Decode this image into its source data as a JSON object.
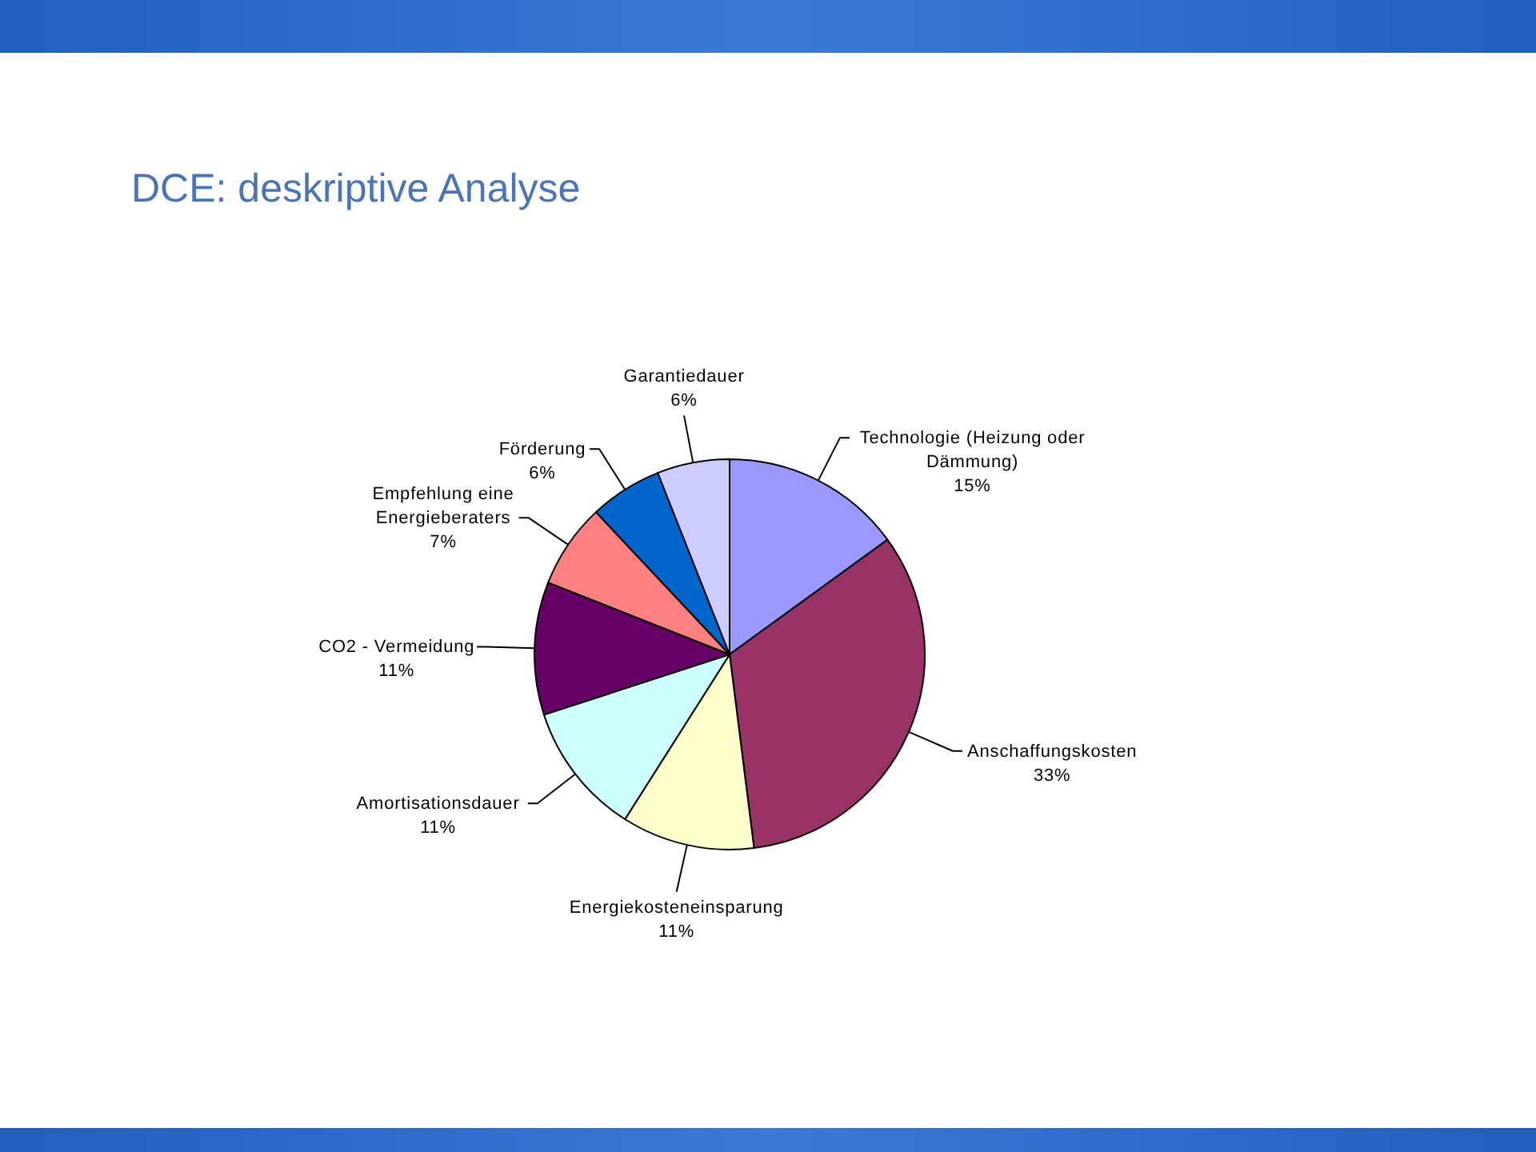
{
  "chart_data": {
    "type": "pie",
    "title": "DCE: deskriptive Analyse",
    "categories": [
      "Technologie (Heizung oder Dämmung)",
      "Anschaffungskosten",
      "Energiekosteneinsparung",
      "Amortisationsdauer",
      "CO2 - Vermeidung",
      "Empfehlung eine Energieberaters",
      "Förderung",
      "Garantiedauer"
    ],
    "values": [
      15,
      33,
      11,
      11,
      11,
      7,
      6,
      6
    ],
    "value_labels": [
      "15%",
      "33%",
      "11%",
      "11%",
      "11%",
      "7%",
      "6%",
      "6%"
    ],
    "colors": [
      "#9999ff",
      "#993366",
      "#ffffcc",
      "#ccffff",
      "#660066",
      "#ff8080",
      "#0066cc",
      "#ccccff"
    ]
  }
}
